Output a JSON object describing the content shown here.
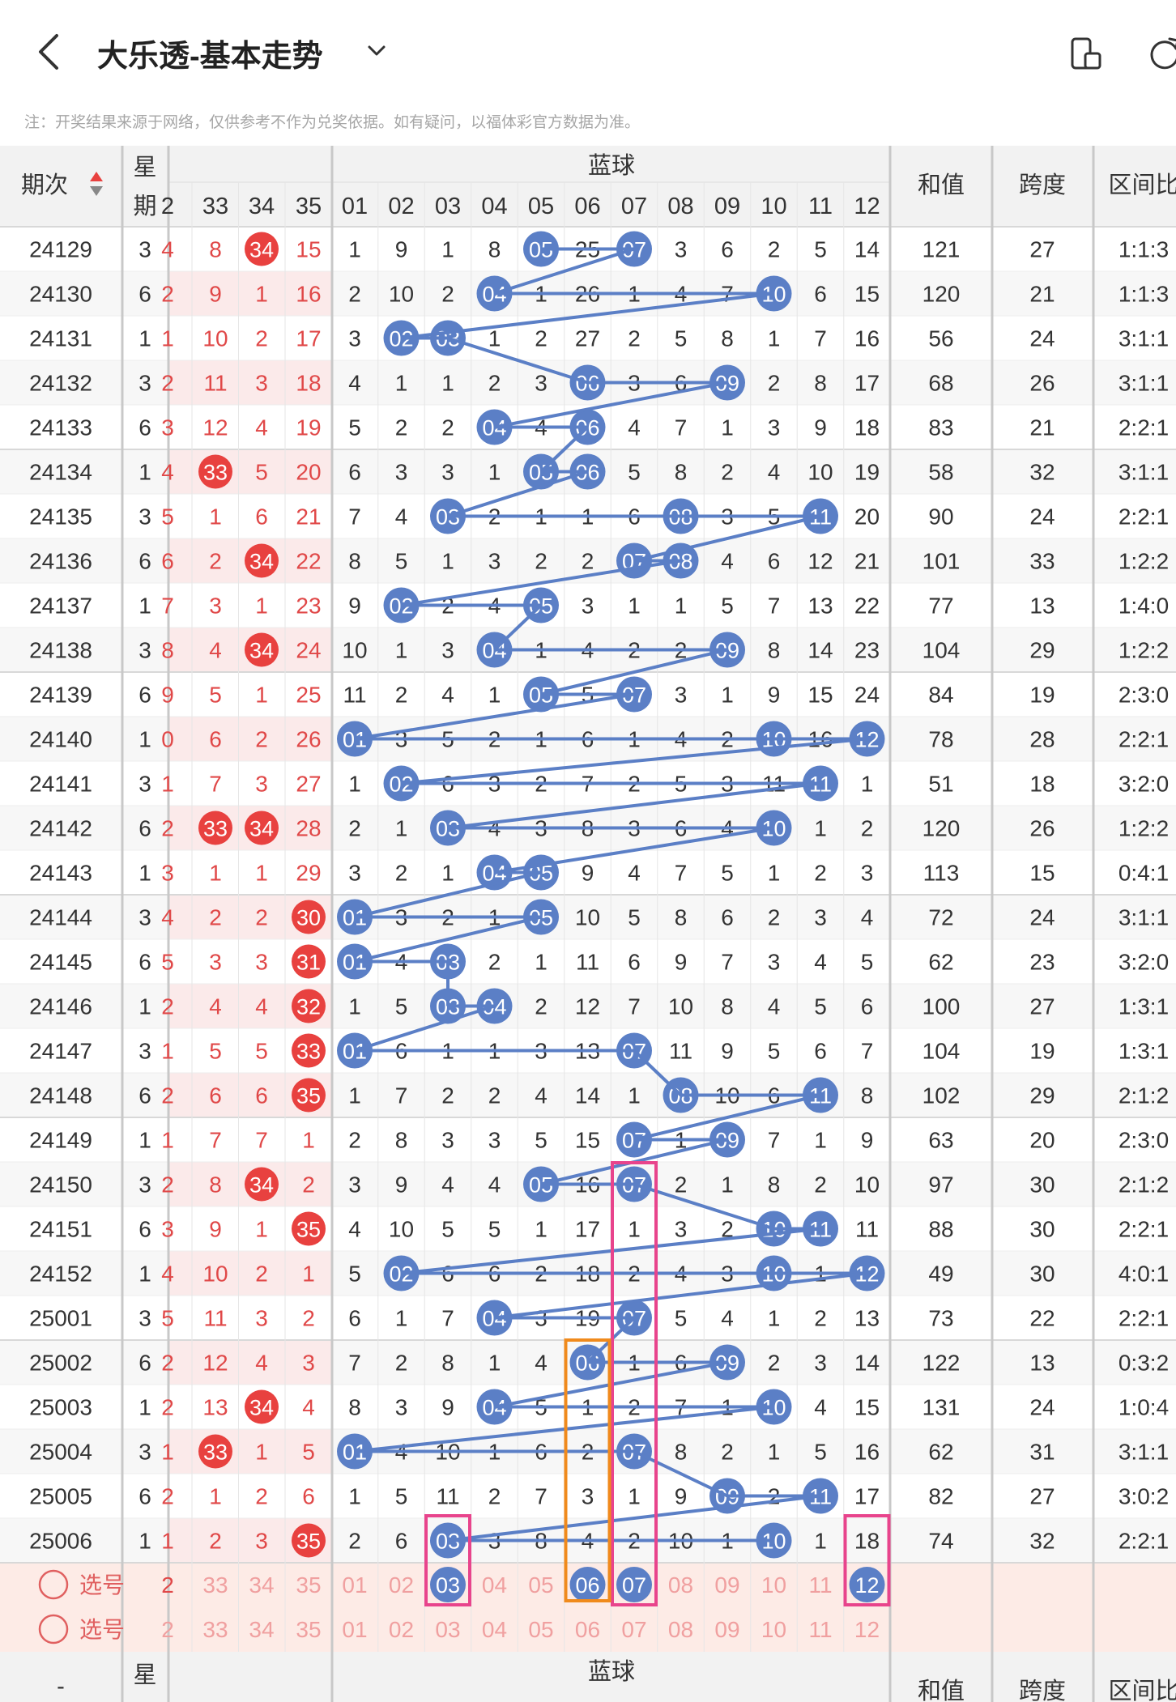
{
  "header": {
    "title": "大乐透-基本走势"
  },
  "notice": "注：开奖结果来源于网络，仅供参考不作为兑奖依据。如有疑问，以福体彩官方数据为准。",
  "table": {
    "col_period": "期次",
    "col_week_top": "星",
    "col_week_bottom": "期",
    "blue_group": "蓝球",
    "col_sum": "和值",
    "col_span": "跨度",
    "col_ratio": "区间比",
    "front_cols": [
      "2",
      "33",
      "34",
      "35"
    ],
    "blue_cols": [
      "01",
      "02",
      "03",
      "04",
      "05",
      "06",
      "07",
      "08",
      "09",
      "10",
      "11",
      "12"
    ],
    "select_label": "选号",
    "footer_period": "-",
    "rows": [
      {
        "period": "24129",
        "week": "3",
        "front": [
          "4",
          "8",
          "34",
          "15"
        ],
        "blue": [
          "1",
          "9",
          "1",
          "8",
          "05",
          "25",
          "07",
          "3",
          "6",
          "2",
          "5",
          "14"
        ],
        "sum": "121",
        "span": "27",
        "ratio": "1:1:3"
      },
      {
        "period": "24130",
        "week": "6",
        "front": [
          "2",
          "9",
          "1",
          "16"
        ],
        "blue": [
          "2",
          "10",
          "2",
          "04",
          "1",
          "26",
          "1",
          "4",
          "7",
          "10",
          "6",
          "15"
        ],
        "sum": "120",
        "span": "21",
        "ratio": "1:1:3"
      },
      {
        "period": "24131",
        "week": "1",
        "front": [
          "1",
          "10",
          "2",
          "17"
        ],
        "blue": [
          "3",
          "02",
          "03",
          "1",
          "2",
          "27",
          "2",
          "5",
          "8",
          "1",
          "7",
          "16"
        ],
        "sum": "56",
        "span": "24",
        "ratio": "3:1:1"
      },
      {
        "period": "24132",
        "week": "3",
        "front": [
          "2",
          "11",
          "3",
          "18"
        ],
        "blue": [
          "4",
          "1",
          "1",
          "2",
          "3",
          "06",
          "3",
          "6",
          "09",
          "2",
          "8",
          "17"
        ],
        "sum": "68",
        "span": "26",
        "ratio": "3:1:1"
      },
      {
        "period": "24133",
        "week": "6",
        "front": [
          "3",
          "12",
          "4",
          "19"
        ],
        "blue": [
          "5",
          "2",
          "2",
          "04",
          "4",
          "06",
          "4",
          "7",
          "1",
          "3",
          "9",
          "18"
        ],
        "sum": "83",
        "span": "21",
        "ratio": "2:2:1"
      },
      {
        "period": "24134",
        "week": "1",
        "front": [
          "4",
          "33",
          "5",
          "20"
        ],
        "blue": [
          "6",
          "3",
          "3",
          "1",
          "05",
          "06",
          "5",
          "8",
          "2",
          "4",
          "10",
          "19"
        ],
        "sum": "58",
        "span": "32",
        "ratio": "3:1:1"
      },
      {
        "period": "24135",
        "week": "3",
        "front": [
          "5",
          "1",
          "6",
          "21"
        ],
        "blue": [
          "7",
          "4",
          "03",
          "2",
          "1",
          "1",
          "6",
          "08",
          "3",
          "5",
          "11",
          "20"
        ],
        "sum": "90",
        "span": "24",
        "ratio": "2:2:1"
      },
      {
        "period": "24136",
        "week": "6",
        "front": [
          "6",
          "2",
          "34",
          "22"
        ],
        "blue": [
          "8",
          "5",
          "1",
          "3",
          "2",
          "2",
          "07",
          "08",
          "4",
          "6",
          "12",
          "21"
        ],
        "sum": "101",
        "span": "33",
        "ratio": "1:2:2"
      },
      {
        "period": "24137",
        "week": "1",
        "front": [
          "7",
          "3",
          "1",
          "23"
        ],
        "blue": [
          "9",
          "02",
          "2",
          "4",
          "05",
          "3",
          "1",
          "1",
          "5",
          "7",
          "13",
          "22"
        ],
        "sum": "77",
        "span": "13",
        "ratio": "1:4:0"
      },
      {
        "period": "24138",
        "week": "3",
        "front": [
          "8",
          "4",
          "34",
          "24"
        ],
        "blue": [
          "10",
          "1",
          "3",
          "04",
          "1",
          "4",
          "2",
          "2",
          "09",
          "8",
          "14",
          "23"
        ],
        "sum": "104",
        "span": "29",
        "ratio": "1:2:2"
      },
      {
        "period": "24139",
        "week": "6",
        "front": [
          "9",
          "5",
          "1",
          "25"
        ],
        "blue": [
          "11",
          "2",
          "4",
          "1",
          "05",
          "5",
          "07",
          "3",
          "1",
          "9",
          "15",
          "24"
        ],
        "sum": "84",
        "span": "19",
        "ratio": "2:3:0"
      },
      {
        "period": "24140",
        "week": "1",
        "front": [
          "0",
          "6",
          "2",
          "26"
        ],
        "blue": [
          "01",
          "3",
          "5",
          "2",
          "1",
          "6",
          "1",
          "4",
          "2",
          "10",
          "16",
          "12"
        ],
        "sum": "78",
        "span": "28",
        "ratio": "2:2:1"
      },
      {
        "period": "24141",
        "week": "3",
        "front": [
          "1",
          "7",
          "3",
          "27"
        ],
        "blue": [
          "1",
          "02",
          "6",
          "3",
          "2",
          "7",
          "2",
          "5",
          "3",
          "11",
          "11",
          "1"
        ],
        "sum": "51",
        "span": "18",
        "ratio": "3:2:0"
      },
      {
        "period": "24142",
        "week": "6",
        "front": [
          "2",
          "33",
          "34",
          "28"
        ],
        "blue": [
          "2",
          "1",
          "03",
          "4",
          "3",
          "8",
          "3",
          "6",
          "4",
          "10",
          "1",
          "2"
        ],
        "sum": "120",
        "span": "26",
        "ratio": "1:2:2"
      },
      {
        "period": "24143",
        "week": "1",
        "front": [
          "3",
          "1",
          "1",
          "29"
        ],
        "blue": [
          "3",
          "2",
          "1",
          "04",
          "05",
          "9",
          "4",
          "7",
          "5",
          "1",
          "2",
          "3"
        ],
        "sum": "113",
        "span": "15",
        "ratio": "0:4:1"
      },
      {
        "period": "24144",
        "week": "3",
        "front": [
          "4",
          "2",
          "2",
          "30"
        ],
        "blue": [
          "01",
          "3",
          "2",
          "1",
          "05",
          "10",
          "5",
          "8",
          "6",
          "2",
          "3",
          "4"
        ],
        "sum": "72",
        "span": "24",
        "ratio": "3:1:1"
      },
      {
        "period": "24145",
        "week": "6",
        "front": [
          "5",
          "3",
          "3",
          "31"
        ],
        "blue": [
          "01",
          "4",
          "03",
          "2",
          "1",
          "11",
          "6",
          "9",
          "7",
          "3",
          "4",
          "5"
        ],
        "sum": "62",
        "span": "23",
        "ratio": "3:2:0"
      },
      {
        "period": "24146",
        "week": "1",
        "front": [
          "2",
          "4",
          "4",
          "32"
        ],
        "blue": [
          "1",
          "5",
          "03",
          "04",
          "2",
          "12",
          "7",
          "10",
          "8",
          "4",
          "5",
          "6"
        ],
        "sum": "100",
        "span": "27",
        "ratio": "1:3:1"
      },
      {
        "period": "24147",
        "week": "3",
        "front": [
          "1",
          "5",
          "5",
          "33"
        ],
        "blue": [
          "01",
          "6",
          "1",
          "1",
          "3",
          "13",
          "07",
          "11",
          "9",
          "5",
          "6",
          "7"
        ],
        "sum": "104",
        "span": "19",
        "ratio": "1:3:1"
      },
      {
        "period": "24148",
        "week": "6",
        "front": [
          "2",
          "6",
          "6",
          "35"
        ],
        "blue": [
          "1",
          "7",
          "2",
          "2",
          "4",
          "14",
          "1",
          "08",
          "10",
          "6",
          "11",
          "8"
        ],
        "sum": "102",
        "span": "29",
        "ratio": "2:1:2"
      },
      {
        "period": "24149",
        "week": "1",
        "front": [
          "1",
          "7",
          "7",
          "1"
        ],
        "blue": [
          "2",
          "8",
          "3",
          "3",
          "5",
          "15",
          "07",
          "1",
          "09",
          "7",
          "1",
          "9"
        ],
        "sum": "63",
        "span": "20",
        "ratio": "2:3:0"
      },
      {
        "period": "24150",
        "week": "3",
        "front": [
          "2",
          "8",
          "34",
          "2"
        ],
        "blue": [
          "3",
          "9",
          "4",
          "4",
          "05",
          "16",
          "07",
          "2",
          "1",
          "8",
          "2",
          "10"
        ],
        "sum": "97",
        "span": "30",
        "ratio": "2:1:2"
      },
      {
        "period": "24151",
        "week": "6",
        "front": [
          "3",
          "9",
          "1",
          "35"
        ],
        "blue": [
          "4",
          "10",
          "5",
          "5",
          "1",
          "17",
          "1",
          "3",
          "2",
          "10",
          "11",
          "11"
        ],
        "sum": "88",
        "span": "30",
        "ratio": "2:2:1"
      },
      {
        "period": "24152",
        "week": "1",
        "front": [
          "4",
          "10",
          "2",
          "1"
        ],
        "blue": [
          "5",
          "02",
          "6",
          "6",
          "2",
          "18",
          "2",
          "4",
          "3",
          "10",
          "1",
          "12"
        ],
        "sum": "49",
        "span": "30",
        "ratio": "4:0:1"
      },
      {
        "period": "25001",
        "week": "3",
        "front": [
          "5",
          "11",
          "3",
          "2"
        ],
        "blue": [
          "6",
          "1",
          "7",
          "04",
          "3",
          "19",
          "07",
          "5",
          "4",
          "1",
          "2",
          "13"
        ],
        "sum": "73",
        "span": "22",
        "ratio": "2:2:1"
      },
      {
        "period": "25002",
        "week": "6",
        "front": [
          "2",
          "12",
          "4",
          "3"
        ],
        "blue": [
          "7",
          "2",
          "8",
          "1",
          "4",
          "06",
          "1",
          "6",
          "09",
          "2",
          "3",
          "14"
        ],
        "sum": "122",
        "span": "13",
        "ratio": "0:3:2"
      },
      {
        "period": "25003",
        "week": "1",
        "front": [
          "2",
          "13",
          "34",
          "4"
        ],
        "blue": [
          "8",
          "3",
          "9",
          "04",
          "5",
          "1",
          "2",
          "7",
          "1",
          "10",
          "4",
          "15"
        ],
        "sum": "131",
        "span": "24",
        "ratio": "1:0:4"
      },
      {
        "period": "25004",
        "week": "3",
        "front": [
          "1",
          "33",
          "1",
          "5"
        ],
        "blue": [
          "01",
          "4",
          "10",
          "1",
          "6",
          "2",
          "07",
          "8",
          "2",
          "1",
          "5",
          "16"
        ],
        "sum": "62",
        "span": "31",
        "ratio": "3:1:1"
      },
      {
        "period": "25005",
        "week": "6",
        "front": [
          "2",
          "1",
          "2",
          "6"
        ],
        "blue": [
          "1",
          "5",
          "11",
          "2",
          "7",
          "3",
          "1",
          "9",
          "09",
          "2",
          "11",
          "17"
        ],
        "sum": "82",
        "span": "27",
        "ratio": "3:0:2"
      },
      {
        "period": "25006",
        "week": "1",
        "front": [
          "1",
          "2",
          "3",
          "35"
        ],
        "blue": [
          "2",
          "6",
          "03",
          "3",
          "8",
          "4",
          "2",
          "10",
          "1",
          "10",
          "1",
          "18"
        ],
        "sum": "74",
        "span": "32",
        "ratio": "2:2:1"
      }
    ]
  },
  "selection": {
    "row1_front_hits": [
      0
    ],
    "row1_blue_hits": [
      2,
      5,
      6,
      11
    ],
    "row2_front_hits": [],
    "row2_blue_hits": []
  },
  "colors": {
    "blue_ball": "#5b7fc6",
    "red_ball": "#e8413f",
    "red_text": "#e04848",
    "highlight_pink": "#e8448c",
    "highlight_orange": "#f08a1c",
    "select_bg": "#fdebe6"
  }
}
